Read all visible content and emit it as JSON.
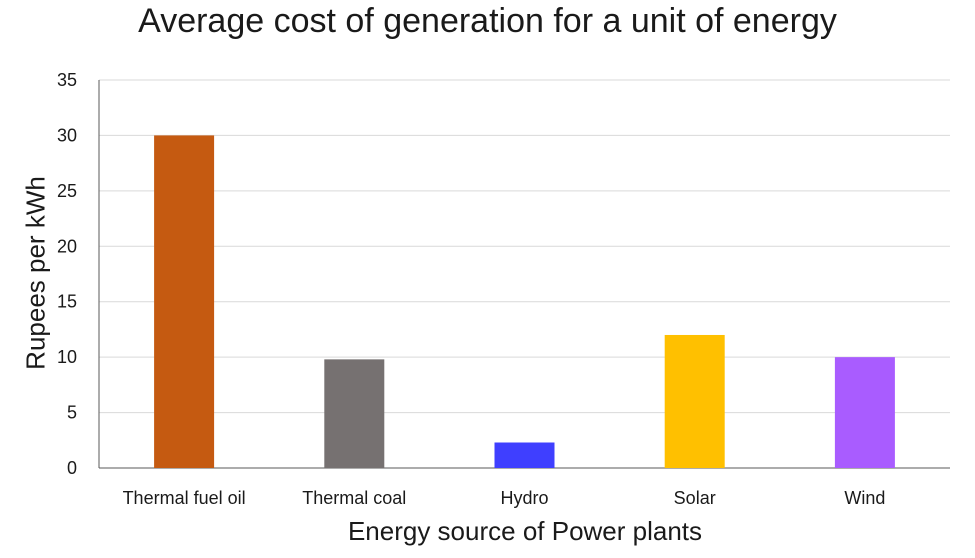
{
  "chart_data": {
    "type": "bar",
    "title": "Average cost of generation for a unit of energy",
    "xlabel": "Energy source of Power plants",
    "ylabel": "Rupees per kWh",
    "categories": [
      "Thermal fuel oil",
      "Thermal coal",
      "Hydro",
      "Solar",
      "Wind"
    ],
    "values": [
      30,
      9.8,
      2.3,
      12,
      10
    ],
    "colors": [
      "#c55a11",
      "#767171",
      "#3f3fff",
      "#ffc000",
      "#a95cff"
    ],
    "ylim": [
      0,
      35
    ],
    "yticks": [
      "0",
      "5",
      "10",
      "15",
      "20",
      "25",
      "30",
      "35"
    ],
    "grid": true,
    "legend": "none"
  }
}
